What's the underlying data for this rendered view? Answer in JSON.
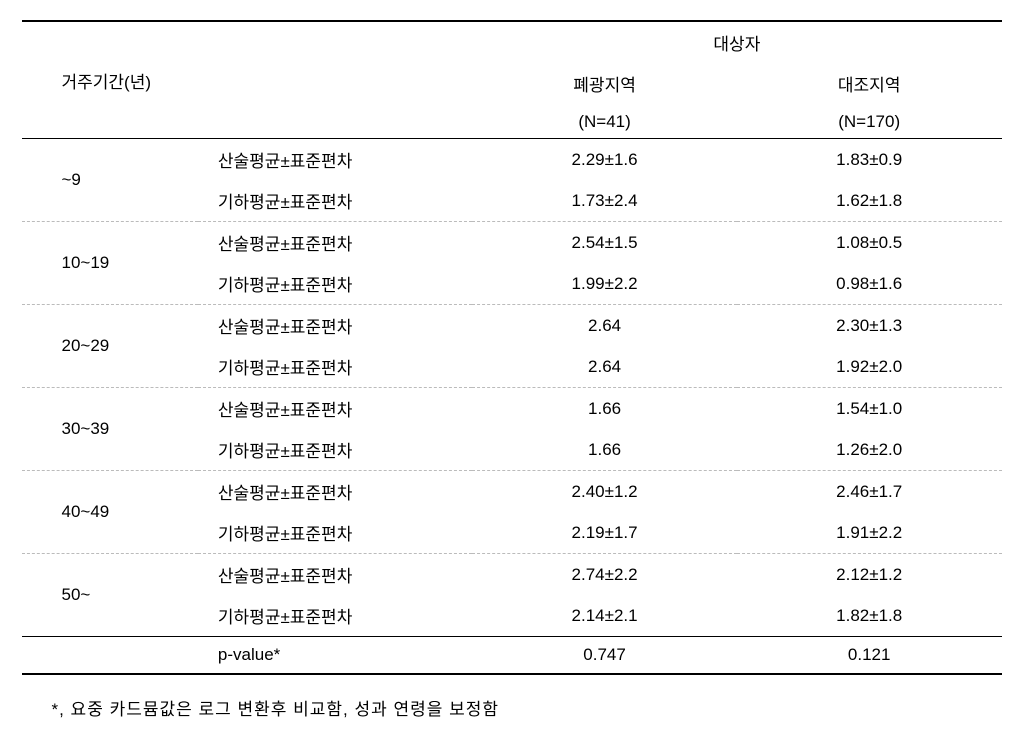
{
  "table": {
    "type": "table",
    "background_color": "#ffffff",
    "border_color": "#000000",
    "dashed_color": "#bbbbbb",
    "font_size": 17,
    "header": {
      "row_label": "거주기간(년)",
      "group_label": "대상자",
      "col1": "폐광지역",
      "col1_n": "(N=41)",
      "col2": "대조지역",
      "col2_n": "(N=170)"
    },
    "metric_labels": {
      "arith": "산술평균±표준편차",
      "geom": "기하평균±표준편차"
    },
    "groups": [
      {
        "period": "~9",
        "arith_c1": "2.29±1.6",
        "arith_c2": "1.83±0.9",
        "geom_c1": "1.73±2.4",
        "geom_c2": "1.62±1.8"
      },
      {
        "period": "10~19",
        "arith_c1": "2.54±1.5",
        "arith_c2": "1.08±0.5",
        "geom_c1": "1.99±2.2",
        "geom_c2": "0.98±1.6"
      },
      {
        "period": "20~29",
        "arith_c1": "2.64",
        "arith_c2": "2.30±1.3",
        "geom_c1": "2.64",
        "geom_c2": "1.92±2.0"
      },
      {
        "period": "30~39",
        "arith_c1": "1.66",
        "arith_c2": "1.54±1.0",
        "geom_c1": "1.66",
        "geom_c2": "1.26±2.0"
      },
      {
        "period": "40~49",
        "arith_c1": "2.40±1.2",
        "arith_c2": "2.46±1.7",
        "geom_c1": "2.19±1.7",
        "geom_c2": "1.91±2.2"
      },
      {
        "period": "50~",
        "arith_c1": "2.74±2.2",
        "arith_c2": "2.12±1.2",
        "geom_c1": "2.14±2.1",
        "geom_c2": "1.82±1.8"
      }
    ],
    "pvalue": {
      "label": "p-value*",
      "c1": "0.747",
      "c2": "0.121"
    }
  },
  "footnote": "*, 요중 카드뮴값은 로그 변환후 비교함, 성과 연령을 보정함"
}
